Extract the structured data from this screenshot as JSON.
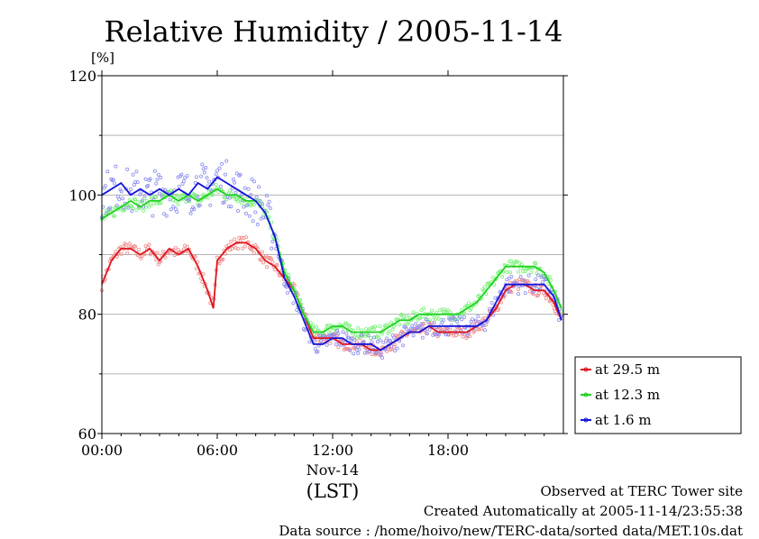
{
  "chart_data": {
    "type": "line",
    "title": "Relative Humidity / 2005-11-14",
    "ylabel": "[%]",
    "xlabel": "(LST)",
    "date_label": "Nov-14",
    "ylim": [
      60,
      120
    ],
    "xlim_hours": [
      0,
      24
    ],
    "y_ticks": [
      "60",
      "80",
      "100",
      "120"
    ],
    "y_gridlines": [
      70,
      80,
      90,
      100,
      110
    ],
    "x_ticks": [
      {
        "hour": 0,
        "label": "00:00"
      },
      {
        "hour": 6,
        "label": "06:00"
      },
      {
        "hour": 12,
        "label": "12:00"
      },
      {
        "hour": 18,
        "label": "18:00"
      }
    ],
    "grid": true,
    "legend_position": "right-lower, outside plot",
    "series": [
      {
        "name": "at 29.5 m",
        "color": "#e0141e",
        "dot_color": "#f08a8a",
        "x": [
          0,
          0.5,
          1,
          1.5,
          2,
          2.5,
          3,
          3.5,
          4,
          4.5,
          5,
          5.5,
          5.8,
          6,
          6.5,
          7,
          7.5,
          8,
          8.5,
          9,
          9.5,
          10,
          10.5,
          11,
          11.5,
          12,
          12.5,
          13,
          13.5,
          14,
          14.5,
          15,
          15.5,
          16,
          16.5,
          17,
          17.5,
          18,
          18.5,
          19,
          19.5,
          20,
          20.5,
          21,
          21.5,
          22,
          22.5,
          23,
          23.5,
          23.9
        ],
        "y": [
          85,
          89,
          91,
          91,
          90,
          91,
          89,
          91,
          90,
          91,
          88,
          84,
          81,
          89,
          91,
          92,
          92,
          91,
          89,
          88,
          86,
          84,
          80,
          76,
          76,
          76,
          75,
          75,
          75,
          74,
          74,
          75,
          76,
          77,
          77,
          78,
          77,
          77,
          77,
          77,
          78,
          79,
          81,
          84,
          85,
          85,
          84,
          84,
          82,
          79
        ]
      },
      {
        "name": "at 12.3 m",
        "color": "#1ed21e",
        "dot_color": "#7af07a",
        "x": [
          0,
          0.5,
          1,
          1.5,
          2,
          2.5,
          3,
          3.5,
          4,
          4.5,
          5,
          5.5,
          6,
          6.5,
          7,
          7.5,
          8,
          8.5,
          9,
          9.5,
          10,
          10.5,
          11,
          11.5,
          12,
          12.5,
          13,
          13.5,
          14,
          14.5,
          15,
          15.5,
          16,
          16.5,
          17,
          17.5,
          18,
          18.5,
          19,
          19.5,
          20,
          20.5,
          21,
          21.5,
          22,
          22.5,
          23,
          23.5,
          23.9
        ],
        "y": [
          96,
          97,
          98,
          99,
          98,
          99,
          99,
          100,
          99,
          100,
          99,
          100,
          101,
          100,
          100,
          99,
          99,
          97,
          93,
          87,
          84,
          80,
          77,
          77,
          78,
          78,
          77,
          77,
          77,
          77,
          78,
          79,
          79,
          80,
          80,
          80,
          80,
          80,
          81,
          82,
          84,
          86,
          88,
          88,
          88,
          88,
          87,
          84,
          81
        ]
      },
      {
        "name": "at 1.6 m",
        "color": "#1414dc",
        "dot_color": "#8c8cf0",
        "x": [
          0,
          0.5,
          1,
          1.5,
          2,
          2.5,
          3,
          3.5,
          4,
          4.5,
          5,
          5.5,
          6,
          6.5,
          7,
          7.5,
          8,
          8.5,
          9,
          9.5,
          10,
          10.5,
          11,
          11.5,
          12,
          12.5,
          13,
          13.5,
          14,
          14.5,
          15,
          15.5,
          16,
          16.5,
          17,
          17.5,
          18,
          18.5,
          19,
          19.5,
          20,
          20.5,
          21,
          21.5,
          22,
          22.5,
          23,
          23.5,
          23.9
        ],
        "y": [
          100,
          101,
          102,
          100,
          101,
          100,
          101,
          100,
          101,
          100,
          102,
          101,
          103,
          102,
          101,
          100,
          99,
          97,
          93,
          86,
          83,
          79,
          75,
          75,
          76,
          76,
          75,
          75,
          75,
          74,
          75,
          76,
          77,
          77,
          78,
          78,
          78,
          78,
          78,
          78,
          79,
          82,
          85,
          85,
          85,
          85,
          85,
          83,
          79
        ]
      }
    ]
  },
  "footer": {
    "line1": "Observed at TERC Tower site",
    "line2": "Created Automatically at 2005-11-14/23:55:38",
    "line3": "Data source : /home/hoivo/new/TERC-data/sorted  data/MET.10s.dat"
  }
}
